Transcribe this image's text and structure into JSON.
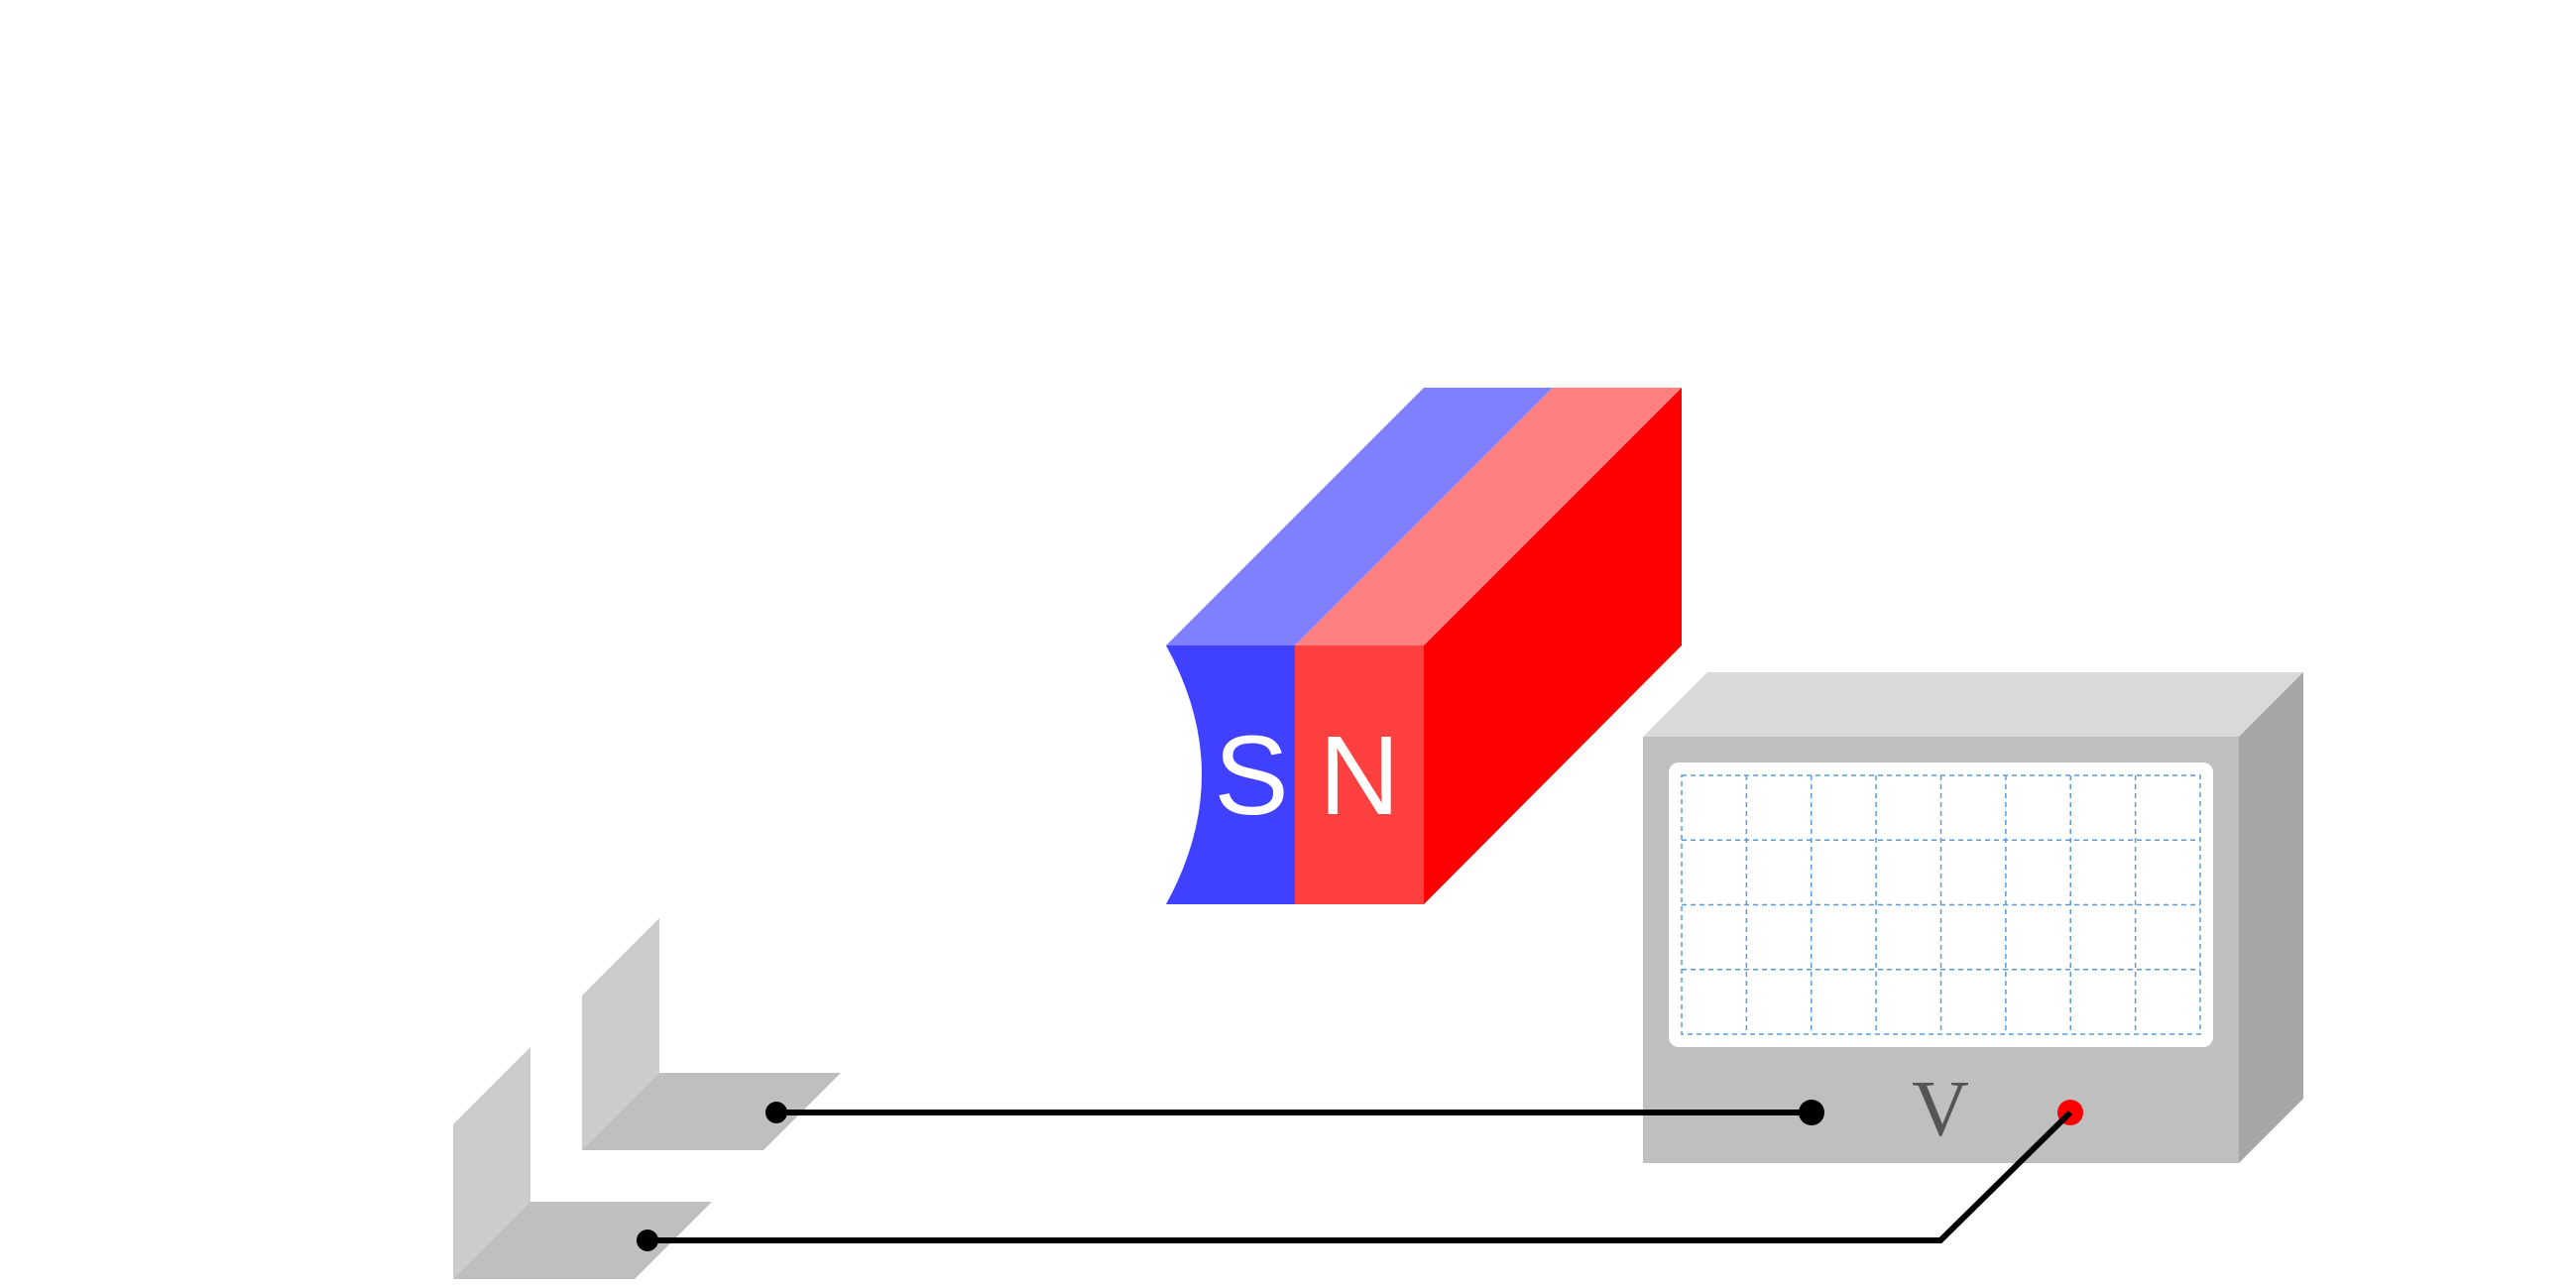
{
  "magnet": {
    "south_label": "S",
    "north_label": "N",
    "colors": {
      "south_front": "#4040ff",
      "south_top": "#8080ff",
      "north_front": "#ff4040",
      "north_top": "#ff8080",
      "north_side": "#ff0000"
    }
  },
  "voltmeter": {
    "label": "V",
    "colors": {
      "body_front": "#bfbfbf",
      "body_top": "#d9d9d9",
      "body_side": "#a6a6a6",
      "screen": "#ffffff",
      "grid": "#5b9bd5",
      "negative_terminal": "#000000",
      "positive_terminal": "#ff0000"
    }
  },
  "plates": {
    "colors": {
      "vertical": "#cccccc",
      "base": "#bfbfbf"
    }
  },
  "wire": {
    "color": "#000000"
  }
}
